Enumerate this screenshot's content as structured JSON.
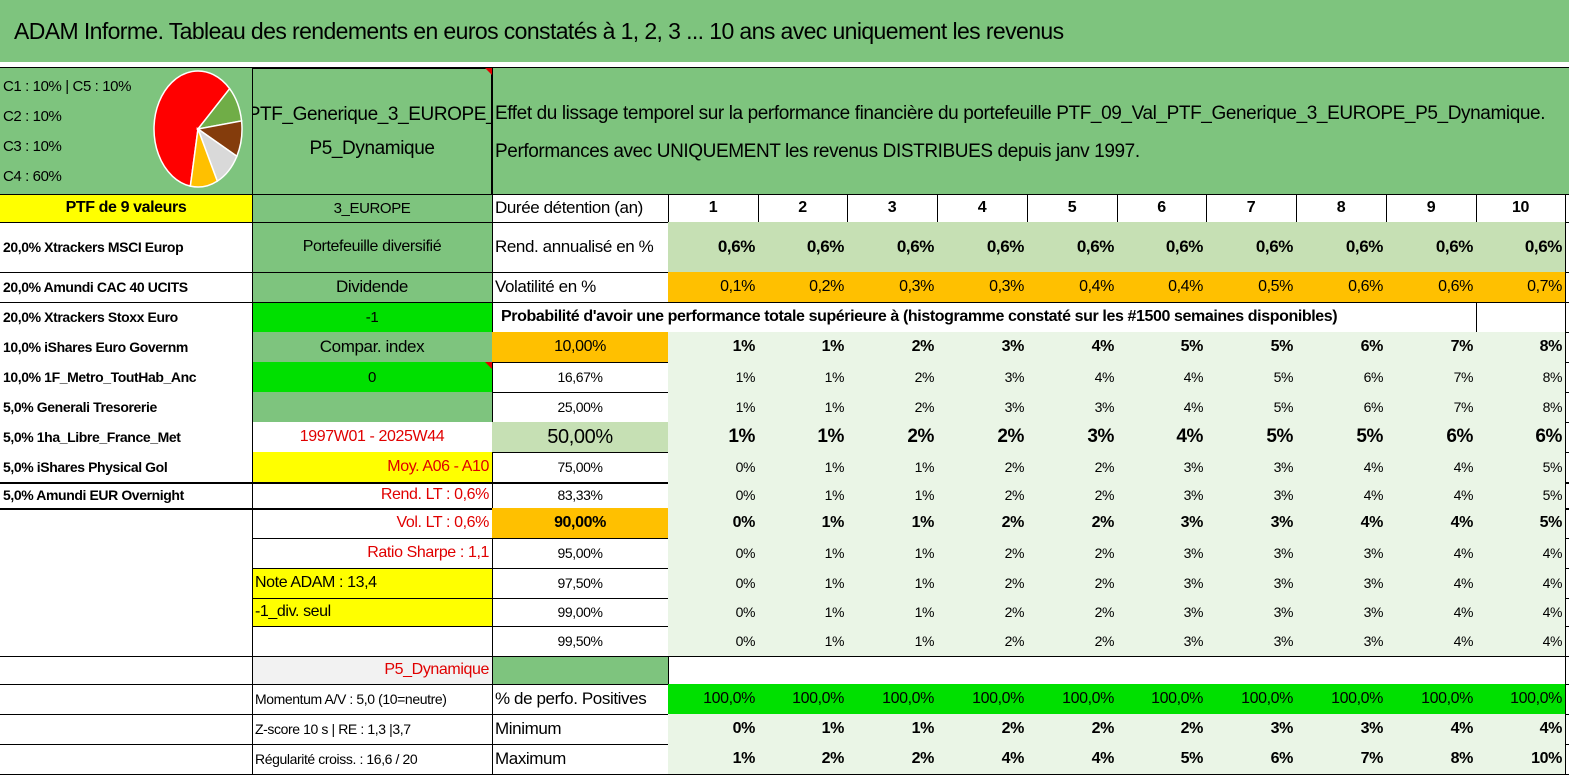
{
  "title": "ADAM Informe. Tableau des rendements en euros constatés à 1, 2, 3 ... 10 ans avec uniquement les revenus",
  "alloc_lines": [
    "C1 : 10% | C5 : 10%",
    "C2 : 10%",
    "C3 : 10%",
    "C4 : 60%"
  ],
  "pie": {
    "slices": [
      {
        "label": "C4",
        "pct": 60,
        "color": "#ff0000"
      },
      {
        "label": "C3",
        "pct": 10,
        "color": "#70ad47"
      },
      {
        "label": "C2",
        "pct": 10,
        "color": "#843c0c"
      },
      {
        "label": "C1",
        "pct": 10,
        "color": "#d9d9d9"
      },
      {
        "label": "C5",
        "pct": 10,
        "color": "#ffc000"
      }
    ]
  },
  "ptf_name_line1": "PTF_Generique_3_EUROPE_",
  "ptf_name_line2": "P5_Dynamique",
  "desc_line1": "Effet du lissage temporel sur la performance financière du portefeuille PTF_09_Val_PTF_Generique_3_EUROPE_P5_Dynamique.",
  "desc_line2": "Performances avec UNIQUEMENT les revenus DISTRIBUES depuis janv 1997.",
  "ptf_count": "PTF de 9 valeurs",
  "region": "3_EUROPE",
  "duree_label": "Durée détention (an)",
  "years": [
    "1",
    "2",
    "3",
    "4",
    "5",
    "6",
    "7",
    "8",
    "9",
    "10"
  ],
  "holdings": [
    "20,0% Xtrackers MSCI Europ",
    "20,0% Amundi CAC 40 UCITS",
    "20,0% Xtrackers Stoxx Euro",
    "10,0% iShares Euro Governm",
    "10,0% 1F_Metro_ToutHab_Anc",
    "5,0% Generali Tresorerie",
    "5,0% 1ha_Libre_France_Met",
    "5,0% iShares Physical Gol",
    "5,0% Amundi EUR Overnight"
  ],
  "middle": {
    "diversifie": "Portefeuille diversifié",
    "dividende": "Dividende",
    "minus_one": "-1",
    "compar_index": "Compar. index",
    "zero": "0",
    "period": "1997W01 - 2025W44",
    "moy": "Moy. A06 - A10",
    "rend_lt": "Rend. LT : 0,6%",
    "vol_lt": "Vol. LT : 0,6%",
    "sharpe": "Ratio Sharpe : 1,1",
    "note_adam": "Note ADAM : 13,4",
    "div_seul": "-1_div. seul",
    "profile": "P5_Dynamique",
    "momentum": "Momentum A/V : 5,0 (10=neutre)",
    "zscore": "Z-score 10 s | RE : 1,3 |3,7",
    "regularite": "Régularité croiss. : 16,6 / 20"
  },
  "rend_label": "Rend. annualisé en %",
  "rend_values": [
    "0,6%",
    "0,6%",
    "0,6%",
    "0,6%",
    "0,6%",
    "0,6%",
    "0,6%",
    "0,6%",
    "0,6%",
    "0,6%"
  ],
  "vol_label": "Volatilité en %",
  "vol_values": [
    "0,1%",
    "0,2%",
    "0,3%",
    "0,3%",
    "0,4%",
    "0,4%",
    "0,5%",
    "0,6%",
    "0,6%",
    "0,7%"
  ],
  "prob_header": "Probabilité d'avoir une performance totale supérieure à (histogramme constaté sur les #1500 semaines disponibles)",
  "prob_rows": [
    {
      "p": "10,00%",
      "v": [
        "1%",
        "1%",
        "2%",
        "3%",
        "4%",
        "5%",
        "5%",
        "6%",
        "7%",
        "8%"
      ]
    },
    {
      "p": "16,67%",
      "v": [
        "1%",
        "1%",
        "2%",
        "3%",
        "4%",
        "4%",
        "5%",
        "6%",
        "7%",
        "8%"
      ]
    },
    {
      "p": "25,00%",
      "v": [
        "1%",
        "1%",
        "2%",
        "3%",
        "3%",
        "4%",
        "5%",
        "6%",
        "7%",
        "8%"
      ]
    },
    {
      "p": "50,00%",
      "v": [
        "1%",
        "1%",
        "2%",
        "2%",
        "3%",
        "4%",
        "5%",
        "5%",
        "6%",
        "6%"
      ]
    },
    {
      "p": "75,00%",
      "v": [
        "0%",
        "1%",
        "1%",
        "2%",
        "2%",
        "3%",
        "3%",
        "4%",
        "4%",
        "5%"
      ]
    },
    {
      "p": "83,33%",
      "v": [
        "0%",
        "1%",
        "1%",
        "2%",
        "2%",
        "3%",
        "3%",
        "4%",
        "4%",
        "5%"
      ]
    },
    {
      "p": "90,00%",
      "v": [
        "0%",
        "1%",
        "1%",
        "2%",
        "2%",
        "3%",
        "3%",
        "4%",
        "4%",
        "5%"
      ]
    },
    {
      "p": "95,00%",
      "v": [
        "0%",
        "1%",
        "1%",
        "2%",
        "2%",
        "3%",
        "3%",
        "3%",
        "4%",
        "4%"
      ]
    },
    {
      "p": "97,50%",
      "v": [
        "0%",
        "1%",
        "1%",
        "2%",
        "2%",
        "3%",
        "3%",
        "3%",
        "4%",
        "4%"
      ]
    },
    {
      "p": "99,00%",
      "v": [
        "0%",
        "1%",
        "1%",
        "2%",
        "2%",
        "3%",
        "3%",
        "3%",
        "4%",
        "4%"
      ]
    },
    {
      "p": "99,50%",
      "v": [
        "0%",
        "1%",
        "1%",
        "2%",
        "2%",
        "3%",
        "3%",
        "3%",
        "4%",
        "4%"
      ]
    }
  ],
  "pos_label": "% de perfo. Positives",
  "pos_values": [
    "100,0%",
    "100,0%",
    "100,0%",
    "100,0%",
    "100,0%",
    "100,0%",
    "100,0%",
    "100,0%",
    "100,0%",
    "100,0%"
  ],
  "min_label": "Minimum",
  "min_values": [
    "0%",
    "1%",
    "1%",
    "2%",
    "2%",
    "2%",
    "3%",
    "3%",
    "4%",
    "4%"
  ],
  "max_label": "Maximum",
  "max_values": [
    "1%",
    "2%",
    "2%",
    "4%",
    "4%",
    "5%",
    "6%",
    "7%",
    "8%",
    "10%"
  ],
  "colors": {
    "header_green": "#7ec47e",
    "yellow": "#ffff00",
    "orange": "#ffc000",
    "bright_green": "#00e000",
    "red_text": "#e00000"
  }
}
